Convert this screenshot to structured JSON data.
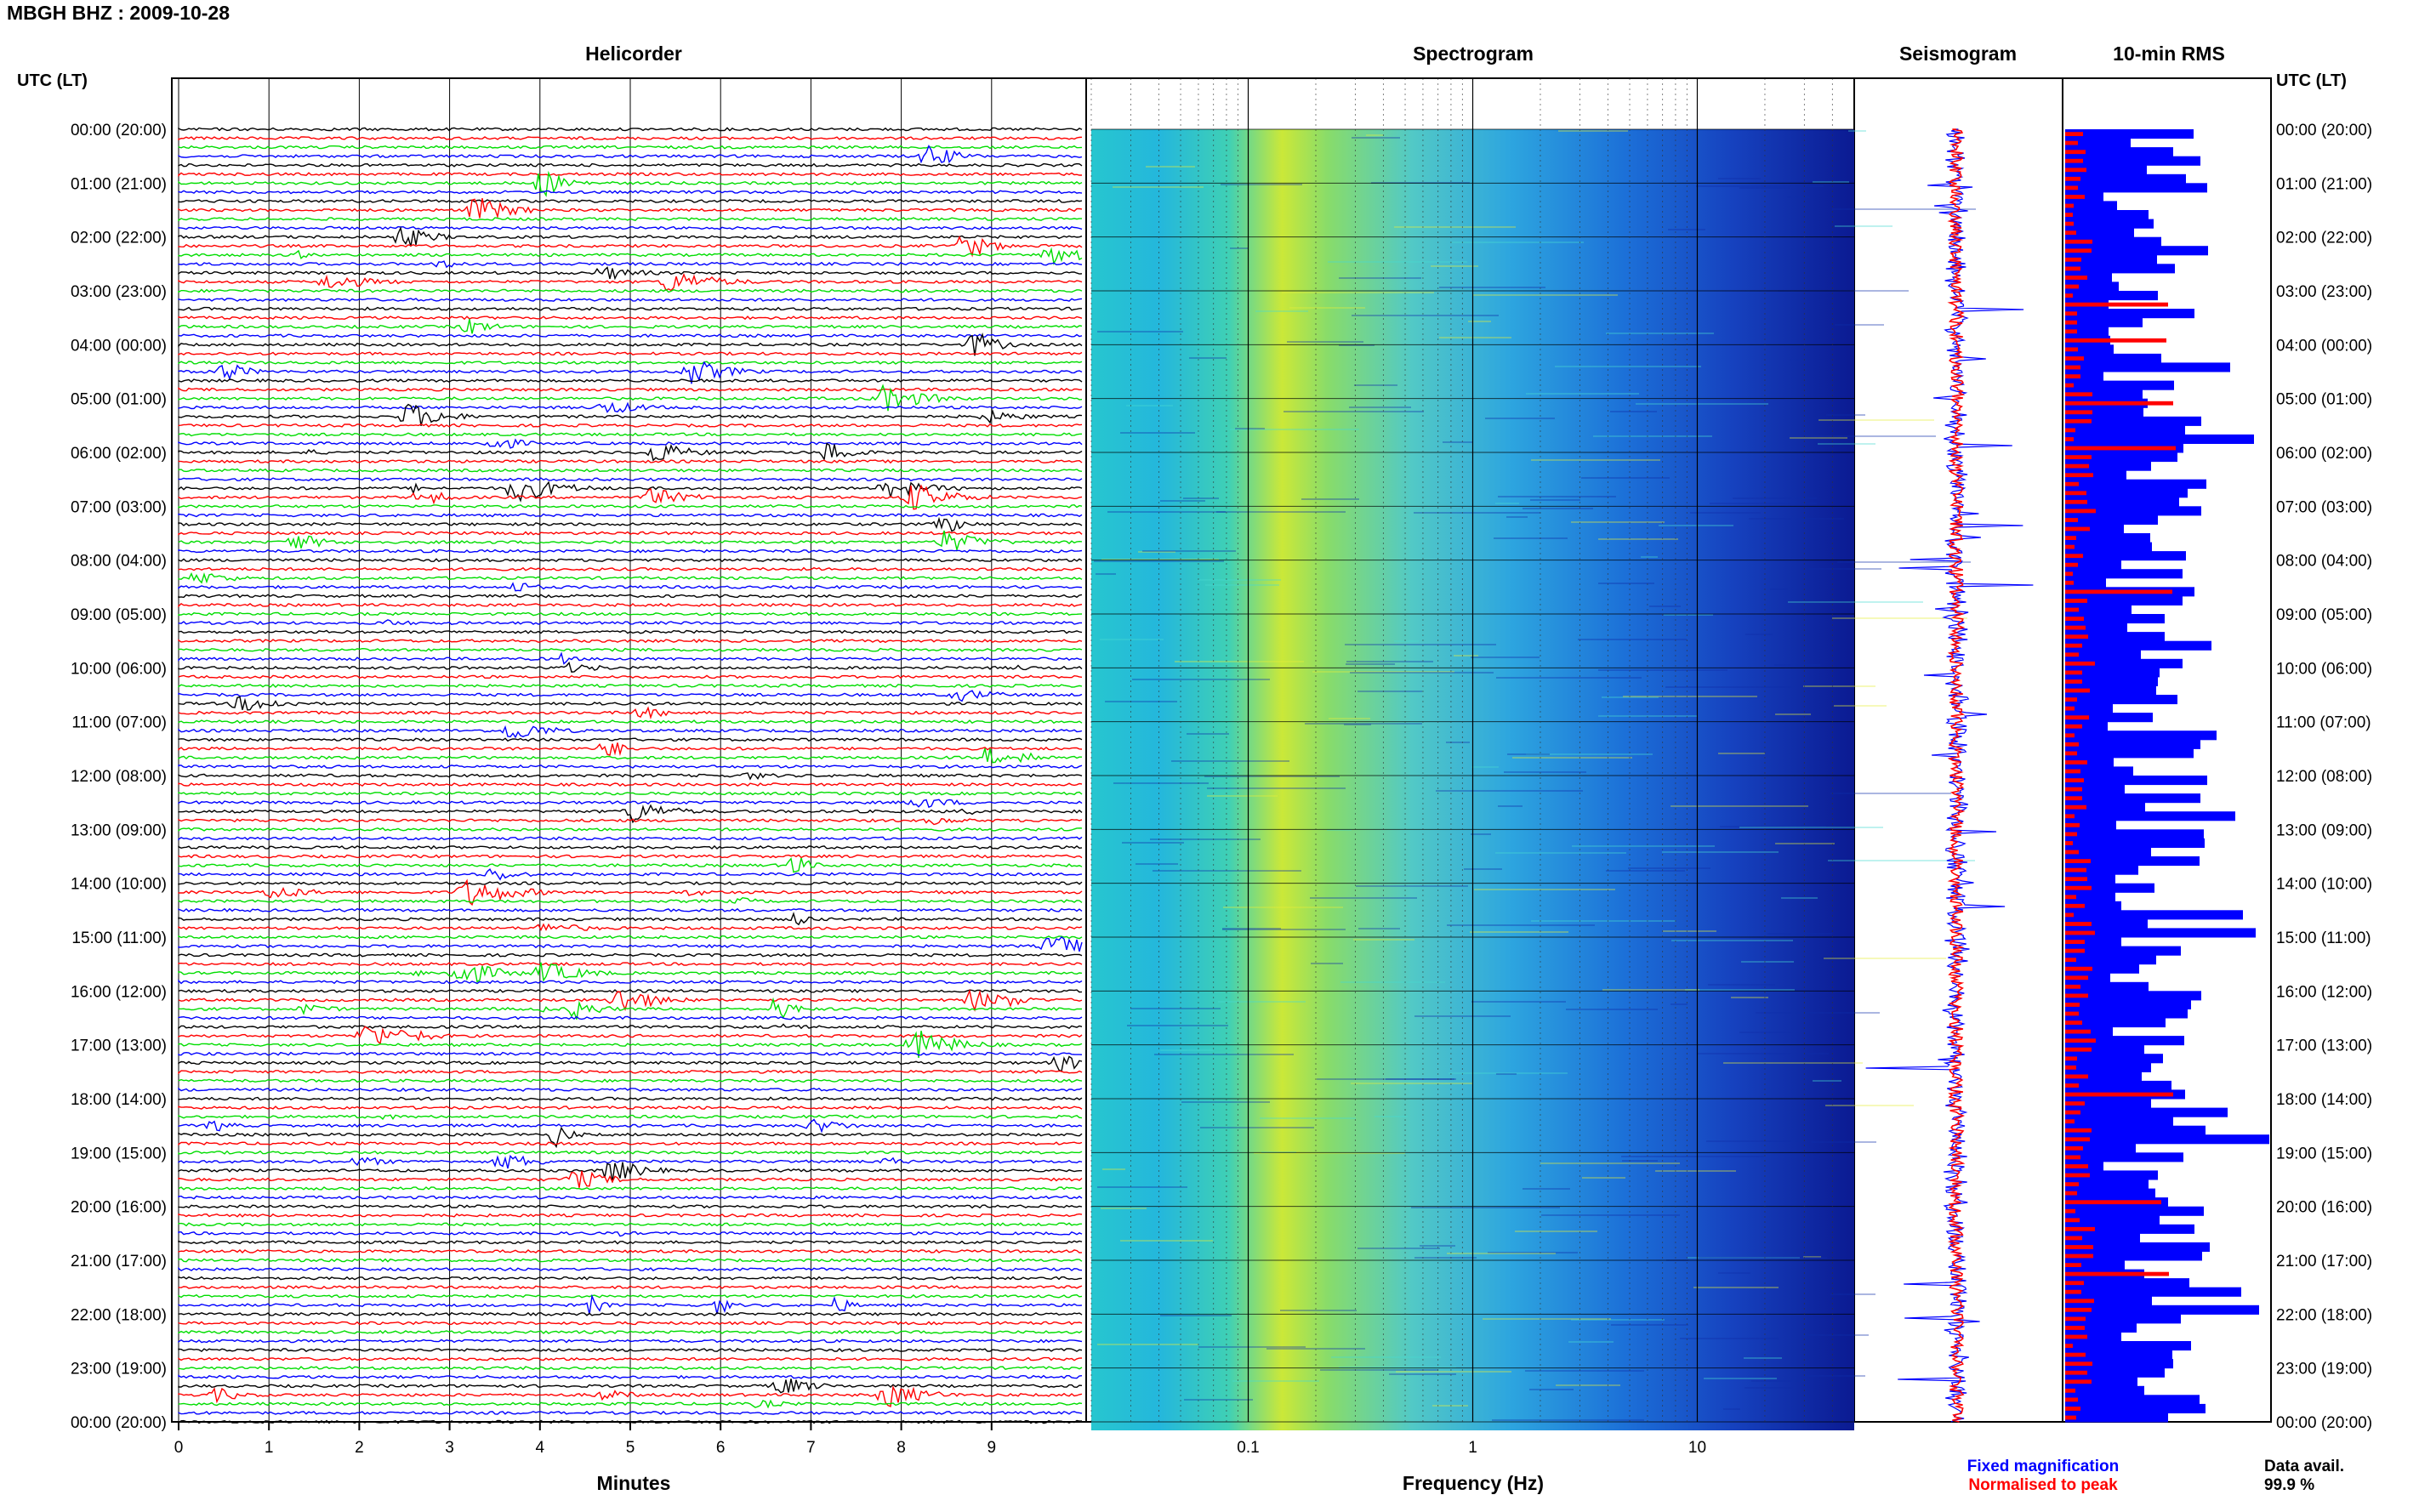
{
  "title": "MBGH BHZ : 2009-10-28",
  "colors": {
    "black": "#000000",
    "red": "#ff0000",
    "green": "#00dd00",
    "blue": "#0000ff",
    "spec_bg": "#1a4fd0",
    "spec_dark": "#0a1690"
  },
  "chart_data": [
    {
      "type": "line",
      "title": "Helicorder",
      "xlabel": "Minutes",
      "ylabel": "UTC (LT)",
      "xlim": [
        0,
        10
      ],
      "x_ticks": [
        "0",
        "1",
        "2",
        "3",
        "4",
        "5",
        "6",
        "7",
        "8",
        "9"
      ],
      "row_labels": [
        "00:00 (20:00)",
        "01:00 (21:00)",
        "02:00 (22:00)",
        "03:00 (23:00)",
        "04:00 (00:00)",
        "05:00 (01:00)",
        "06:00 (02:00)",
        "07:00 (03:00)",
        "08:00 (04:00)",
        "09:00 (05:00)",
        "10:00 (06:00)",
        "11:00 (07:00)",
        "12:00 (08:00)",
        "13:00 (09:00)",
        "14:00 (10:00)",
        "15:00 (11:00)",
        "16:00 (12:00)",
        "17:00 (13:00)",
        "18:00 (14:00)",
        "19:00 (15:00)",
        "20:00 (16:00)",
        "21:00 (17:00)",
        "22:00 (18:00)",
        "23:00 (19:00)",
        "00:00 (20:00)"
      ],
      "trace_color_cycle": [
        "black",
        "red",
        "green",
        "blue"
      ],
      "traces_per_hour": 6,
      "grid": true
    },
    {
      "type": "heatmap",
      "title": "Spectrogram",
      "xlabel": "Frequency (Hz)",
      "x_scale": "log",
      "xlim": [
        0.02,
        50
      ],
      "x_tick_labels": [
        "0.1",
        "1",
        "10"
      ],
      "x_tick_values": [
        0.1,
        1,
        10
      ],
      "grid": true
    },
    {
      "type": "line",
      "title": "Seismogram",
      "legend": [
        "Fixed magnification",
        "Normalised to peak"
      ],
      "series_colors": [
        "blue",
        "red"
      ]
    },
    {
      "type": "bar",
      "title": "10-min RMS",
      "orientation": "horizontal",
      "legend_colors": [
        "blue",
        "red"
      ],
      "data_avail_label": "Data avail.",
      "data_avail_value": "99.9 %"
    }
  ],
  "right_axis": {
    "label": "UTC (LT)"
  }
}
